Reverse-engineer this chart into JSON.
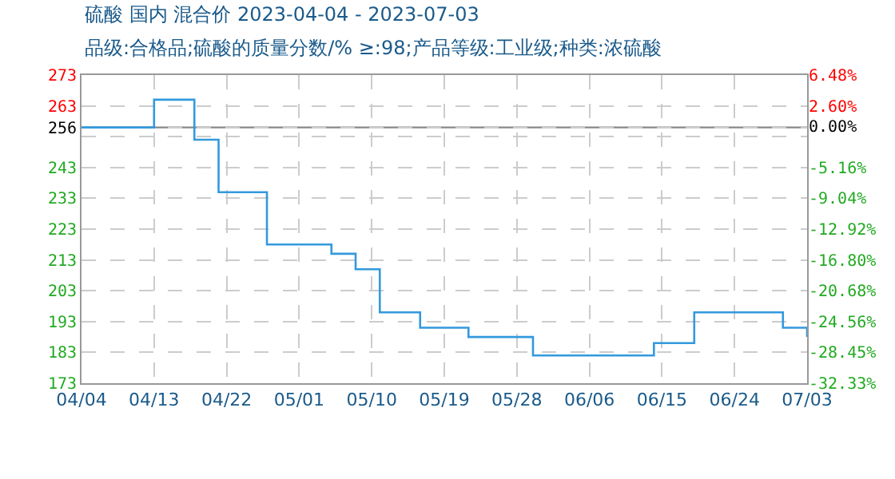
{
  "chart_data": {
    "type": "step",
    "title": "硫酸 国内 混合价 2023-04-04 - 2023-07-03",
    "subtitle": "品级:合格品;硫酸的质量分数/% ≥:98;产品等级:工业级;种类:浓硫酸",
    "x": [
      "2023-04-04",
      "2023-04-11",
      "2023-04-13",
      "2023-04-17",
      "2023-04-18",
      "2023-04-20",
      "2023-04-21",
      "2023-04-26",
      "2023-04-27",
      "2023-05-04",
      "2023-05-05",
      "2023-05-07",
      "2023-05-08",
      "2023-05-10",
      "2023-05-11",
      "2023-05-15",
      "2023-05-16",
      "2023-05-21",
      "2023-05-22",
      "2023-05-29",
      "2023-05-30",
      "2023-06-13",
      "2023-06-14",
      "2023-06-18",
      "2023-06-19",
      "2023-06-29",
      "2023-06-30",
      "2023-07-02",
      "2023-07-03"
    ],
    "series": [
      {
        "color": "#3399dd",
        "values": [
          256,
          256,
          265,
          265,
          252,
          252,
          235,
          235,
          218,
          218,
          215,
          215,
          210,
          210,
          196,
          196,
          191,
          191,
          188,
          188,
          182,
          182,
          186,
          186,
          196,
          196,
          191,
          191,
          188
        ]
      }
    ],
    "xlim": [
      "2023-04-04",
      "2023-07-03"
    ],
    "xticks": [
      {
        "value": "2023-04-04",
        "label": "04/04"
      },
      {
        "value": "2023-04-13",
        "label": "04/13"
      },
      {
        "value": "2023-04-22",
        "label": "04/22"
      },
      {
        "value": "2023-05-01",
        "label": "05/01"
      },
      {
        "value": "2023-05-10",
        "label": "05/10"
      },
      {
        "value": "2023-05-19",
        "label": "05/19"
      },
      {
        "value": "2023-05-28",
        "label": "05/28"
      },
      {
        "value": "2023-06-06",
        "label": "06/06"
      },
      {
        "value": "2023-06-15",
        "label": "06/15"
      },
      {
        "value": "2023-06-24",
        "label": "06/24"
      },
      {
        "value": "2023-07-03",
        "label": "07/03"
      }
    ],
    "ylim": [
      173,
      273
    ],
    "yticks": [
      273,
      263,
      256,
      {
        "value": 253,
        "label": null
      },
      243,
      233,
      223,
      213,
      203,
      193,
      183,
      173
    ],
    "y2lim": [
      -32.33,
      6.48
    ],
    "y2ticks": [
      {
        "value": 6.48,
        "label": "6.48%"
      },
      {
        "value": 2.6,
        "label": "2.60%"
      },
      {
        "value": 0,
        "label": "0.00%"
      },
      {
        "value": -5.16,
        "label": "-5.16%"
      },
      {
        "value": -9.04,
        "label": "-9.04%"
      },
      {
        "value": -12.92,
        "label": "-12.92%"
      },
      {
        "value": -16.8,
        "label": "-16.80%"
      },
      {
        "value": -20.68,
        "label": "-20.68%"
      },
      {
        "value": -24.56,
        "label": "-24.56%"
      },
      {
        "value": -28.45,
        "label": "-28.45%"
      },
      {
        "value": -32.33,
        "label": "-32.33%"
      }
    ],
    "ref_lines": [
      {
        "axis": "y",
        "value": 256,
        "color": "#888888"
      }
    ],
    "grid": true,
    "legend": false,
    "marker": "none",
    "line_style": "solid"
  }
}
